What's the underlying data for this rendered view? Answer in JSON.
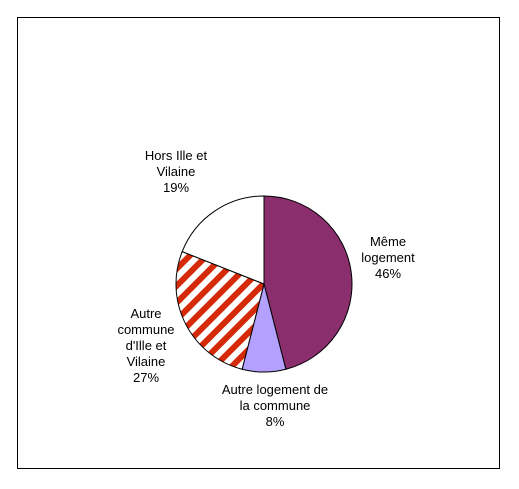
{
  "chart_data": {
    "type": "pie",
    "categories": [
      "Même logement",
      "Autre logement de la commune",
      "Autre commune d'Ille et Vilaine",
      "Hors Ille et Vilaine"
    ],
    "values": [
      46,
      8,
      27,
      19
    ],
    "value_labels": [
      "46%",
      "8%",
      "27%",
      "19%"
    ],
    "colors": [
      "#8b2e6e",
      "#b3a0ff",
      "#d42a0a",
      "#ffffff"
    ],
    "hatched": [
      false,
      false,
      true,
      false
    ]
  }
}
